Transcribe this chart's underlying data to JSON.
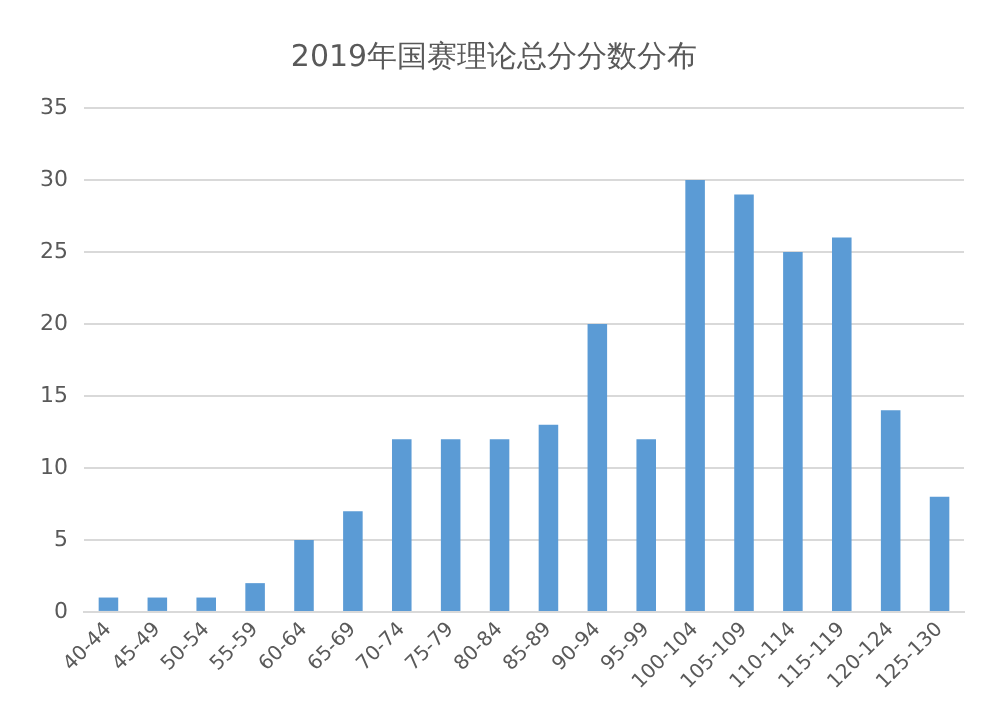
{
  "chart_data": {
    "type": "bar",
    "title": "2019年国赛理论总分分数分布",
    "categories": [
      "40-44",
      "45-49",
      "50-54",
      "55-59",
      "60-64",
      "65-69",
      "70-74",
      "75-79",
      "80-84",
      "85-89",
      "90-94",
      "95-99",
      "100-104",
      "105-109",
      "110-114",
      "115-119",
      "120-124",
      "125-130"
    ],
    "values": [
      1,
      1,
      1,
      2,
      5,
      7,
      12,
      12,
      12,
      13,
      20,
      12,
      30,
      29,
      25,
      26,
      14,
      8
    ],
    "color": "#5b9bd5",
    "ylim": [
      0,
      35
    ],
    "yticks": [
      0,
      5,
      10,
      15,
      20,
      25,
      30,
      35
    ],
    "grid": "y"
  }
}
